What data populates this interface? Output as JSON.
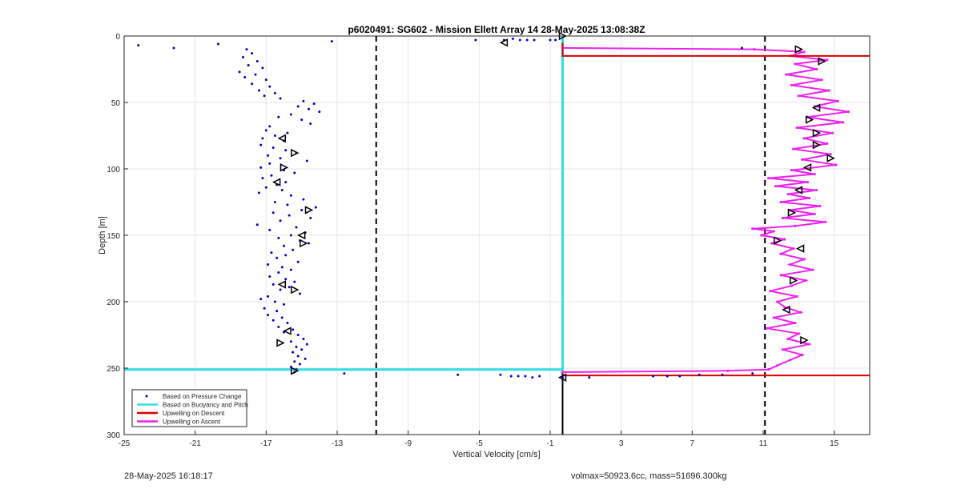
{
  "chart_data": {
    "type": "scatter",
    "title": "p6020491: SG602 - Mission Ellett Array 14 28-May-2025 13:08:38Z",
    "xlabel": "Vertical Velocity [cm/s]",
    "ylabel": "Depth [m]",
    "xlim": [
      -25,
      17
    ],
    "ylim": [
      0,
      300
    ],
    "y_reversed": true,
    "grid": true,
    "xticks": [
      -25,
      -21,
      -17,
      -13,
      -9,
      -5,
      -1,
      3,
      7,
      11,
      15
    ],
    "yticks": [
      0,
      50,
      100,
      150,
      200,
      250,
      300
    ],
    "legend": {
      "placement": "bottom-left",
      "entries": [
        {
          "label": "Based on Pressure Change",
          "color": "#0000cc",
          "style": "dots"
        },
        {
          "label": "Based on Buoyancy and Pitch",
          "color": "#33dde6",
          "style": "line"
        },
        {
          "label": "Upwelling on Descent",
          "color": "#dd0000",
          "style": "line"
        },
        {
          "label": "Upwelling on Ascent",
          "color": "#ee22ee",
          "style": "line"
        }
      ]
    },
    "reference_lines_x": [
      -10.8,
      11.1
    ],
    "pressure_change_points": [
      [
        -24.2,
        7
      ],
      [
        -22.2,
        9
      ],
      [
        -19.7,
        6
      ],
      [
        -13.3,
        4
      ],
      [
        -18.1,
        10
      ],
      [
        -17.8,
        13
      ],
      [
        -18.3,
        16
      ],
      [
        -17.5,
        19
      ],
      [
        -18.0,
        22
      ],
      [
        -17.2,
        24
      ],
      [
        -18.5,
        27
      ],
      [
        -17.6,
        29
      ],
      [
        -18.2,
        31
      ],
      [
        -17.0,
        33
      ],
      [
        -17.8,
        36
      ],
      [
        -16.8,
        38
      ],
      [
        -17.4,
        41
      ],
      [
        -16.5,
        43
      ],
      [
        -17.1,
        45
      ],
      [
        -16.2,
        47
      ],
      [
        -14.9,
        49
      ],
      [
        -14.3,
        51
      ],
      [
        -15.2,
        53
      ],
      [
        -14.6,
        55
      ],
      [
        -14.0,
        57
      ],
      [
        -15.6,
        59
      ],
      [
        -16.3,
        61
      ],
      [
        -15.0,
        63
      ],
      [
        -14.5,
        66
      ],
      [
        -16.8,
        68
      ],
      [
        -17.0,
        71
      ],
      [
        -15.8,
        73
      ],
      [
        -16.5,
        75
      ],
      [
        -17.2,
        77
      ],
      [
        -16.0,
        79
      ],
      [
        -17.3,
        82
      ],
      [
        -16.6,
        84
      ],
      [
        -15.9,
        86
      ],
      [
        -15.3,
        88
      ],
      [
        -16.9,
        90
      ],
      [
        -16.2,
        92
      ],
      [
        -14.7,
        94
      ],
      [
        -16.8,
        96
      ],
      [
        -17.3,
        99
      ],
      [
        -16.0,
        101
      ],
      [
        -15.4,
        103
      ],
      [
        -16.7,
        105
      ],
      [
        -17.2,
        107
      ],
      [
        -15.9,
        110
      ],
      [
        -16.4,
        112
      ],
      [
        -17.0,
        114
      ],
      [
        -16.1,
        116
      ],
      [
        -17.4,
        118
      ],
      [
        -15.6,
        120
      ],
      [
        -14.9,
        123
      ],
      [
        -16.5,
        125
      ],
      [
        -15.8,
        127
      ],
      [
        -14.2,
        129
      ],
      [
        -15.0,
        131
      ],
      [
        -16.6,
        133
      ],
      [
        -15.7,
        135
      ],
      [
        -14.5,
        137
      ],
      [
        -16.2,
        139
      ],
      [
        -17.5,
        142
      ],
      [
        -15.3,
        144
      ],
      [
        -16.8,
        146
      ],
      [
        -14.8,
        148
      ],
      [
        -15.6,
        150
      ],
      [
        -16.3,
        152
      ],
      [
        -15.1,
        154
      ],
      [
        -14.6,
        156
      ],
      [
        -16.0,
        158
      ],
      [
        -15.5,
        161
      ],
      [
        -16.7,
        163
      ],
      [
        -15.9,
        165
      ],
      [
        -16.4,
        167
      ],
      [
        -15.2,
        170
      ],
      [
        -16.9,
        172
      ],
      [
        -16.1,
        174
      ],
      [
        -15.6,
        176
      ],
      [
        -16.3,
        178
      ],
      [
        -16.8,
        181
      ],
      [
        -15.9,
        183
      ],
      [
        -15.4,
        185
      ],
      [
        -16.6,
        187
      ],
      [
        -15.7,
        189
      ],
      [
        -16.2,
        191
      ],
      [
        -15.1,
        194
      ],
      [
        -16.9,
        196
      ],
      [
        -17.3,
        198
      ],
      [
        -16.5,
        200
      ],
      [
        -16.0,
        202
      ],
      [
        -17.1,
        205
      ],
      [
        -16.4,
        207
      ],
      [
        -16.9,
        210
      ],
      [
        -16.1,
        212
      ],
      [
        -16.6,
        214
      ],
      [
        -15.8,
        216
      ],
      [
        -16.3,
        219
      ],
      [
        -15.5,
        221
      ],
      [
        -16.0,
        223
      ],
      [
        -15.2,
        225
      ],
      [
        -14.9,
        228
      ],
      [
        -15.6,
        230
      ],
      [
        -14.7,
        232
      ],
      [
        -15.3,
        234
      ],
      [
        -15.0,
        236
      ],
      [
        -15.5,
        238
      ],
      [
        -15.2,
        241
      ],
      [
        -14.8,
        243
      ],
      [
        -15.4,
        245
      ],
      [
        -15.1,
        247
      ],
      [
        -15.6,
        249
      ],
      [
        -15.3,
        251
      ],
      [
        -15.4,
        253
      ],
      [
        -12.6,
        254
      ],
      [
        -6.2,
        255
      ],
      [
        -3.8,
        255
      ],
      [
        -3.2,
        256
      ],
      [
        -2.8,
        256
      ],
      [
        -2.4,
        256
      ],
      [
        -2.0,
        257
      ],
      [
        -1.6,
        256
      ],
      [
        -0.3,
        257
      ],
      [
        1.2,
        257
      ],
      [
        4.8,
        256
      ],
      [
        5.6,
        256
      ],
      [
        6.3,
        256
      ],
      [
        7.4,
        255
      ],
      [
        8.7,
        255
      ],
      [
        10.4,
        254
      ],
      [
        -5.2,
        3
      ],
      [
        -3.6,
        3
      ],
      [
        -3.1,
        2
      ],
      [
        -2.7,
        3
      ],
      [
        -2.3,
        3
      ],
      [
        -1.9,
        3
      ],
      [
        -1.0,
        3
      ],
      [
        -0.7,
        3
      ],
      [
        9.8,
        9
      ]
    ],
    "buoyancy_pitch_line": [
      [
        -0.3,
        0
      ],
      [
        -0.3,
        251
      ],
      [
        -25,
        251
      ]
    ],
    "upwelling_descent_line": [
      [
        -0.3,
        5
      ],
      [
        -0.3,
        15
      ],
      [
        17,
        15
      ]
    ],
    "upwelling_descent_line_bottom": [
      [
        -0.3,
        255.5
      ],
      [
        17,
        255.5
      ]
    ],
    "upwelling_ascent_points": [
      [
        -0.3,
        253
      ],
      [
        9.0,
        252
      ],
      [
        11.3,
        251
      ],
      [
        11.8,
        248
      ],
      [
        12.5,
        244
      ],
      [
        13.2,
        240
      ],
      [
        12.1,
        236
      ],
      [
        13.6,
        232
      ],
      [
        12.4,
        228
      ],
      [
        13.0,
        224
      ],
      [
        11.2,
        220
      ],
      [
        12.8,
        216
      ],
      [
        11.6,
        212
      ],
      [
        13.1,
        208
      ],
      [
        12.2,
        204
      ],
      [
        11.8,
        200
      ],
      [
        12.9,
        196
      ],
      [
        11.4,
        192
      ],
      [
        12.6,
        188
      ],
      [
        13.4,
        184
      ],
      [
        12.0,
        180
      ],
      [
        13.8,
        176
      ],
      [
        12.5,
        172
      ],
      [
        13.3,
        168
      ],
      [
        12.0,
        164
      ],
      [
        12.7,
        160
      ],
      [
        11.5,
        156
      ],
      [
        12.2,
        153
      ],
      [
        10.9,
        150
      ],
      [
        11.6,
        147
      ],
      [
        10.4,
        145
      ],
      [
        12.8,
        143
      ],
      [
        14.5,
        140
      ],
      [
        12.1,
        137
      ],
      [
        13.9,
        134
      ],
      [
        12.5,
        131
      ],
      [
        14.2,
        128
      ],
      [
        12.0,
        125
      ],
      [
        13.6,
        122
      ],
      [
        12.4,
        119
      ],
      [
        14.0,
        116
      ],
      [
        11.7,
        113
      ],
      [
        13.5,
        110
      ],
      [
        11.3,
        107
      ],
      [
        13.9,
        104
      ],
      [
        12.6,
        101
      ],
      [
        15.1,
        97
      ],
      [
        13.2,
        93
      ],
      [
        14.8,
        89
      ],
      [
        12.7,
        85
      ],
      [
        14.6,
        81
      ],
      [
        13.3,
        77
      ],
      [
        14.9,
        73
      ],
      [
        12.9,
        69
      ],
      [
        15.5,
        65
      ],
      [
        13.5,
        61
      ],
      [
        15.8,
        57
      ],
      [
        13.9,
        53
      ],
      [
        15.2,
        49
      ],
      [
        13.0,
        45
      ],
      [
        14.7,
        41
      ],
      [
        12.6,
        37
      ],
      [
        14.3,
        33
      ],
      [
        12.3,
        29
      ],
      [
        14.0,
        25
      ],
      [
        12.8,
        21
      ],
      [
        14.6,
        18
      ],
      [
        12.5,
        15
      ],
      [
        13.3,
        12
      ],
      [
        10.5,
        10
      ],
      [
        -0.3,
        9
      ]
    ],
    "markers": [
      {
        "x": -3.6,
        "y": 5,
        "dir": "left"
      },
      {
        "x": -0.3,
        "y": 0,
        "dir": "right"
      },
      {
        "x": -16.1,
        "y": 77,
        "dir": "left"
      },
      {
        "x": -15.4,
        "y": 88,
        "dir": "right"
      },
      {
        "x": -16.0,
        "y": 99,
        "dir": "right"
      },
      {
        "x": -16.4,
        "y": 110,
        "dir": "left"
      },
      {
        "x": -14.6,
        "y": 131,
        "dir": "right"
      },
      {
        "x": -15.0,
        "y": 150,
        "dir": "left"
      },
      {
        "x": -14.9,
        "y": 156,
        "dir": "right"
      },
      {
        "x": -16.1,
        "y": 187,
        "dir": "left"
      },
      {
        "x": -15.4,
        "y": 191,
        "dir": "right"
      },
      {
        "x": -15.8,
        "y": 222,
        "dir": "left"
      },
      {
        "x": -16.2,
        "y": 231,
        "dir": "right"
      },
      {
        "x": -15.4,
        "y": 252,
        "dir": "right"
      },
      {
        "x": -0.3,
        "y": 257,
        "dir": "left"
      },
      {
        "x": 13.0,
        "y": 10,
        "dir": "right"
      },
      {
        "x": 14.3,
        "y": 19,
        "dir": "right"
      },
      {
        "x": 14.0,
        "y": 54,
        "dir": "left"
      },
      {
        "x": 13.6,
        "y": 63,
        "dir": "right"
      },
      {
        "x": 14.0,
        "y": 73,
        "dir": "right"
      },
      {
        "x": 14.0,
        "y": 82,
        "dir": "right"
      },
      {
        "x": 14.8,
        "y": 92,
        "dir": "right"
      },
      {
        "x": 13.5,
        "y": 99,
        "dir": "left"
      },
      {
        "x": 13.0,
        "y": 116,
        "dir": "left"
      },
      {
        "x": 12.6,
        "y": 133,
        "dir": "right"
      },
      {
        "x": 11.8,
        "y": 154,
        "dir": "right"
      },
      {
        "x": 13.1,
        "y": 160,
        "dir": "left"
      },
      {
        "x": 12.7,
        "y": 184,
        "dir": "right"
      },
      {
        "x": 12.3,
        "y": 206,
        "dir": "left"
      },
      {
        "x": 13.3,
        "y": 229,
        "dir": "right"
      }
    ]
  },
  "footer": {
    "left": "28-May-2025 16:18:17",
    "right": "volmax=50923.6cc, mass=51696.300kg"
  }
}
